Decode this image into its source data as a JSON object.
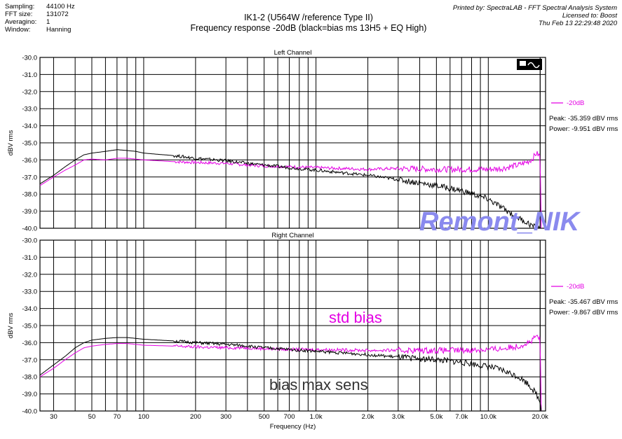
{
  "meta": [
    {
      "key": "Sampling:",
      "value": "44100 Hz"
    },
    {
      "key": "FFT size:",
      "value": "131072"
    },
    {
      "key": "Averagino:",
      "value": "1"
    },
    {
      "key": "Window:",
      "value": "Hanning"
    }
  ],
  "title_line1": "IK1-2 (U564W /reference Type II)",
  "title_line2": "Frequency response -20dB (black=bias ms 13H5 + EQ High)",
  "printed_line1": "Printed by: SpectraLAB - FFT Spectral Analysis System",
  "printed_line2": "Licensed to: Boost",
  "printed_line3": "Thu Feb 13 22:29:48 2020",
  "watermark": "Remont_NIK",
  "annotation_std": "std bias",
  "annotation_max": "bias max sens",
  "colors": {
    "magenta": "#e400e4",
    "black": "#000000",
    "watermark": "#8a8aee"
  },
  "chart_data": [
    {
      "type": "line",
      "title": "Left Channel",
      "xlabel": "Frequency (Hz)",
      "ylabel": "dBV rms",
      "xscale": "log",
      "xlim": [
        25,
        21500
      ],
      "ylim": [
        -40.0,
        -30.0
      ],
      "yticks": [
        "-30.0",
        "-31.0",
        "-32.0",
        "-33.0",
        "-34.0",
        "-35.0",
        "-36.0",
        "-37.0",
        "-38.0",
        "-39.0",
        "-40.0"
      ],
      "legend": {
        "label": "-20dB",
        "peak": "Peak: -35.359 dBV rms",
        "power": "Power: -9.951 dBV rms"
      },
      "series": [
        {
          "name": "std bias",
          "color": "#e400e4",
          "x": [
            25,
            30,
            35,
            40,
            45,
            50,
            60,
            70,
            80,
            90,
            100,
            150,
            200,
            300,
            400,
            500,
            700,
            1000,
            2000,
            3000,
            5000,
            7000,
            10000,
            12000,
            15000,
            17000,
            18000,
            19000,
            20000,
            20300
          ],
          "y": [
            -37.5,
            -37.0,
            -36.6,
            -36.3,
            -36.0,
            -35.95,
            -36.0,
            -35.9,
            -35.9,
            -35.95,
            -36.0,
            -36.1,
            -36.15,
            -36.2,
            -36.3,
            -36.35,
            -36.4,
            -36.45,
            -36.55,
            -36.5,
            -36.55,
            -36.55,
            -36.55,
            -36.5,
            -36.3,
            -36.1,
            -35.95,
            -35.6,
            -35.8,
            -40.0
          ]
        },
        {
          "name": "bias max sens",
          "color": "#000000",
          "x": [
            25,
            30,
            35,
            40,
            45,
            50,
            60,
            70,
            80,
            90,
            100,
            150,
            200,
            300,
            400,
            500,
            700,
            1000,
            2000,
            3000,
            5000,
            7000,
            10000,
            12000,
            15000,
            17000,
            18000,
            19000,
            20000,
            20300
          ],
          "y": [
            -37.4,
            -36.9,
            -36.4,
            -36.0,
            -35.7,
            -35.6,
            -35.5,
            -35.4,
            -35.45,
            -35.5,
            -35.6,
            -35.75,
            -35.9,
            -36.05,
            -36.2,
            -36.3,
            -36.45,
            -36.6,
            -36.9,
            -37.15,
            -37.5,
            -37.8,
            -38.3,
            -38.8,
            -39.4,
            -39.7,
            -39.85,
            -40.0,
            -40.0,
            -40.0
          ]
        }
      ]
    },
    {
      "type": "line",
      "title": "Right Channel",
      "xlabel": "Frequency (Hz)",
      "ylabel": "dBV rms",
      "xscale": "log",
      "xlim": [
        25,
        21500
      ],
      "ylim": [
        -40.0,
        -30.0
      ],
      "yticks": [
        "-30.0",
        "-31.0",
        "-32.0",
        "-33.0",
        "-34.0",
        "-35.0",
        "-36.0",
        "-37.0",
        "-38.0",
        "-39.0",
        "-40.0"
      ],
      "xticks": [
        "30",
        "50",
        "70",
        "100",
        "200",
        "300",
        "500",
        "700",
        "1.0k",
        "2.0k",
        "3.0k",
        "5.0k",
        "7.0k",
        "10.0k",
        "20.0k"
      ],
      "legend": {
        "label": "-20dB",
        "peak": "Peak: -35.467 dBV rms",
        "power": "Power: -9.867 dBV rms"
      },
      "series": [
        {
          "name": "std bias",
          "color": "#e400e4",
          "x": [
            25,
            30,
            35,
            40,
            45,
            50,
            60,
            70,
            80,
            90,
            100,
            150,
            200,
            300,
            400,
            500,
            700,
            1000,
            2000,
            3000,
            5000,
            7000,
            10000,
            12000,
            15000,
            17000,
            18000,
            19000,
            20000,
            20300
          ],
          "y": [
            -38.0,
            -37.5,
            -37.0,
            -36.6,
            -36.3,
            -36.2,
            -36.1,
            -36.05,
            -36.05,
            -36.1,
            -36.15,
            -36.2,
            -36.25,
            -36.3,
            -36.3,
            -36.35,
            -36.4,
            -36.4,
            -36.45,
            -36.45,
            -36.45,
            -36.45,
            -36.4,
            -36.35,
            -36.2,
            -36.0,
            -35.9,
            -35.6,
            -35.8,
            -40.0
          ]
        },
        {
          "name": "bias max sens",
          "color": "#000000",
          "x": [
            25,
            30,
            35,
            40,
            45,
            50,
            60,
            70,
            80,
            90,
            100,
            150,
            200,
            300,
            400,
            500,
            700,
            1000,
            2000,
            3000,
            5000,
            7000,
            10000,
            12000,
            15000,
            17000,
            18000,
            19000,
            20000,
            20300
          ],
          "y": [
            -37.9,
            -37.3,
            -36.8,
            -36.3,
            -36.0,
            -35.85,
            -35.75,
            -35.7,
            -35.7,
            -35.75,
            -35.8,
            -35.9,
            -36.0,
            -36.1,
            -36.2,
            -36.3,
            -36.4,
            -36.5,
            -36.7,
            -36.85,
            -37.0,
            -37.15,
            -37.4,
            -37.6,
            -38.0,
            -38.4,
            -38.7,
            -39.0,
            -39.5,
            -40.0
          ]
        }
      ]
    }
  ]
}
